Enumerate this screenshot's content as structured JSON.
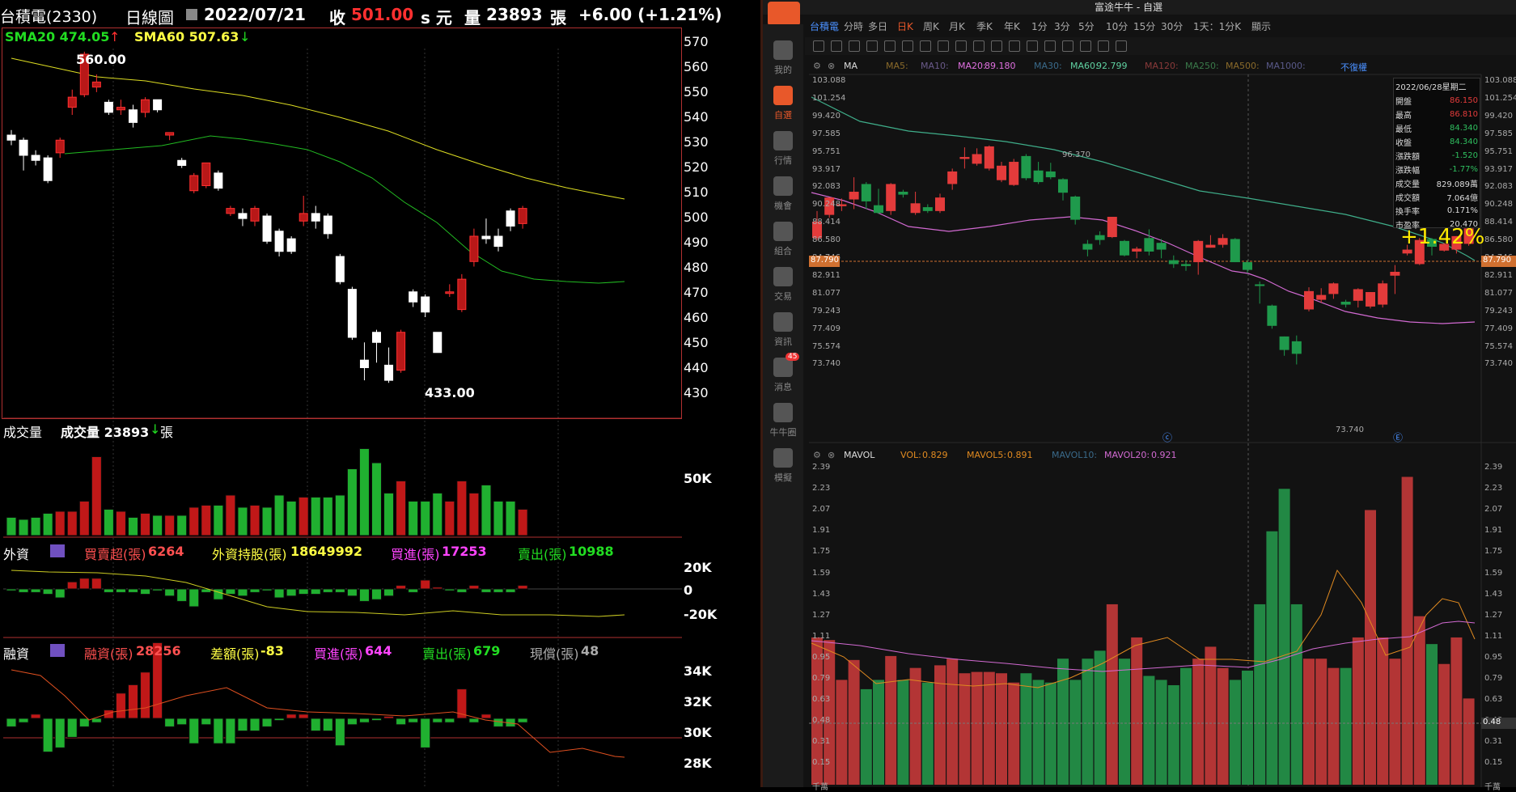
{
  "left": {
    "header": {
      "name": "台積電(2330)",
      "period": "日線圖",
      "date": "2022/07/21",
      "close_label": "收",
      "close": "501.00",
      "unit1": "s 元",
      "vol_label": "量",
      "vol": "23893",
      "vol_unit": "張",
      "change": "+6.00 (+1.21%)"
    },
    "ma": {
      "sma20": "SMA20 474.05",
      "sma60": "SMA60 507.63"
    },
    "price_axis": [
      "570",
      "560",
      "550",
      "540",
      "530",
      "520",
      "510",
      "500",
      "490",
      "480",
      "470",
      "460",
      "450",
      "440",
      "430"
    ],
    "annotations": {
      "high": "560.00",
      "low": "433.00"
    },
    "volume": {
      "title": "成交量",
      "label": "成交量 23893",
      "unit": "張",
      "axis": "50K"
    },
    "foreign": {
      "title": "外資",
      "net_label": "買賣超(張)",
      "net": "6264",
      "hold_label": "外資持股(張)",
      "hold": "18649992",
      "buy_label": "買進(張)",
      "buy": "17253",
      "sell_label": "賣出(張)",
      "sell": "10988",
      "axis": [
        "20K",
        "0",
        "-20K"
      ]
    },
    "margin": {
      "title": "融資",
      "bal_label": "融資(張)",
      "bal": "28256",
      "diff_label": "差額(張)",
      "diff": "-83",
      "buy_label": "買進(張)",
      "buy": "644",
      "sell_label": "賣出(張)",
      "sell": "679",
      "cash_label": "現償(張)",
      "cash": "48",
      "axis": [
        "34K",
        "32K",
        "30K",
        "28K"
      ]
    }
  },
  "right": {
    "window_title": "富途牛牛 - 自選",
    "sidebar": [
      {
        "label": "我的"
      },
      {
        "label": "自選"
      },
      {
        "label": "行情"
      },
      {
        "label": "機會"
      },
      {
        "label": "組合"
      },
      {
        "label": "交易"
      },
      {
        "label": "資訊"
      },
      {
        "label": "消息",
        "badge": "45"
      },
      {
        "label": "牛牛圈"
      },
      {
        "label": "模擬"
      }
    ],
    "tabs": [
      "台積電",
      "分時",
      "多日",
      "日K",
      "周K",
      "月K",
      "季K",
      "年K",
      "1分",
      "3分",
      "5分",
      "10分",
      "15分",
      "30分",
      "1天：1分K",
      "顯示"
    ],
    "ma_row": {
      "ma": "MA",
      "ma5": "MA5:",
      "ma10": "MA10:",
      "ma20": "MA20:",
      "ma20v": "89.180",
      "ma30": "MA30:",
      "ma60": "MA60:",
      "ma60v": "92.799",
      "ma120": "MA120:",
      "ma250": "MA250:",
      "ma500": "MA500:",
      "ma1000": "MA1000:",
      "adjust": "不復權"
    },
    "price_axis": [
      "103.088",
      "101.254",
      "99.420",
      "97.585",
      "95.751",
      "93.917",
      "92.083",
      "90.248",
      "88.414",
      "86.580",
      "84.746",
      "82.911",
      "81.077",
      "79.243",
      "77.409",
      "75.574",
      "73.740"
    ],
    "current_price": "87.790",
    "annotations": {
      "high": "96.370",
      "low": "73.740",
      "pct": "+1.42%"
    },
    "info": {
      "date": "2022/06/28星期二",
      "rows": [
        [
          "開盤",
          "86.150"
        ],
        [
          "最高",
          "86.810"
        ],
        [
          "最低",
          "84.340"
        ],
        [
          "收盤",
          "84.340"
        ],
        [
          "漲跌額",
          "-1.520"
        ],
        [
          "漲跌幅",
          "-1.77%"
        ],
        [
          "成交量",
          "829.089萬"
        ],
        [
          "成交額",
          "7.064億"
        ],
        [
          "換手率",
          "0.171%"
        ],
        [
          "市盈率",
          "20.470"
        ]
      ]
    },
    "vol_row": {
      "mavol": "MAVOL",
      "vol": "VOL:",
      "volv": "0.829",
      "mavol5": "MAVOL5:",
      "mavol5v": "0.891",
      "mavol10": "MAVOL10:",
      "mavol20": "MAVOL20:",
      "mavol20v": "0.921"
    },
    "vol_axis": [
      "2.39",
      "2.23",
      "2.07",
      "1.91",
      "1.75",
      "1.59",
      "1.43",
      "1.27",
      "1.11",
      "0.95",
      "0.79",
      "0.63",
      "0.48",
      "0.31",
      "0.15",
      "千萬"
    ],
    "vol_current": "0.48"
  },
  "colors": {
    "up": "#d7191c",
    "down": "#1aa33a",
    "futu_up": "#e33b3b",
    "futu_down": "#1f9a4c"
  }
}
